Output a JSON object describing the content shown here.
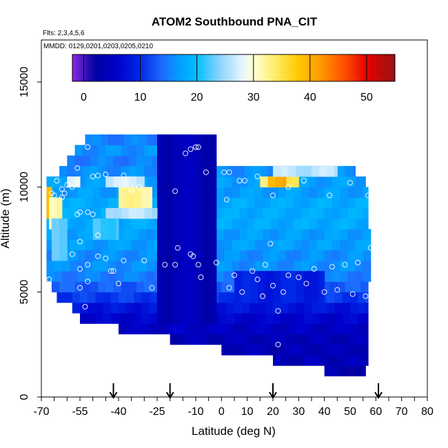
{
  "chart_data": {
    "type": "heatmap",
    "title": "ATOM2 Southbound PNA_CIT",
    "flights_note": "Flts: 2,3,4,5,6",
    "dates_note": "MMDD: 0129,0201,0203,0205,0210",
    "xlabel": "Latitude (deg N)",
    "ylabel": "Altitude (m)",
    "xlim": [
      -70,
      80
    ],
    "ylim": [
      0,
      17000
    ],
    "x_tick_labels": [
      "-70",
      "-55",
      "-40",
      "-25",
      "-10",
      "0",
      "10",
      "20",
      "30",
      "40",
      "50",
      "60",
      "70",
      "80"
    ],
    "x_tick_values": [
      -70,
      -55,
      -40,
      -25,
      -10,
      0,
      10,
      20,
      30,
      40,
      50,
      60,
      70,
      80
    ],
    "y_tick_labels": [
      "0",
      "5000",
      "10000",
      "15000"
    ],
    "y_tick_values": [
      0,
      5000,
      10000,
      15000
    ],
    "colorbar": {
      "range": [
        -2,
        55
      ],
      "tick_labels": [
        "0",
        "10",
        "20",
        "30",
        "40",
        "50"
      ],
      "tick_values": [
        0,
        10,
        20,
        30,
        40,
        50
      ]
    },
    "arrow_latitudes": [
      -42,
      -20,
      20,
      61
    ],
    "bands": [
      {
        "alt_bottom": 1000,
        "alt_top": 1500,
        "x_start": 40,
        "x_end": 56,
        "value": 3
      },
      {
        "alt_bottom": 1500,
        "alt_top": 2000,
        "x_start": 20,
        "x_end": 57,
        "value": 4
      },
      {
        "alt_bottom": 2000,
        "alt_top": 2500,
        "x_start": 0,
        "x_end": 57,
        "value": 4
      },
      {
        "alt_bottom": 2500,
        "alt_top": 3000,
        "x_start": -20,
        "x_end": 57,
        "value": 4
      },
      {
        "alt_bottom": 3000,
        "alt_top": 3500,
        "x_start": -40,
        "x_end": 57,
        "value": 5
      },
      {
        "alt_bottom": 3500,
        "alt_top": 4000,
        "x_start": -55,
        "x_end": 57,
        "value": 6
      },
      {
        "alt_bottom": 4000,
        "alt_top": 4500,
        "x_start": -58,
        "x_end": 57,
        "value": 8
      },
      {
        "alt_bottom": 4500,
        "alt_top": 5000,
        "x_start": -64,
        "x_end": 57,
        "value": 11
      },
      {
        "alt_bottom": 5000,
        "alt_top": 5500,
        "x_start": -66,
        "x_end": 57,
        "value": 13
      },
      {
        "alt_bottom": 5500,
        "alt_top": 6000,
        "x_start": -68,
        "x_end": 58,
        "value": 15
      },
      {
        "alt_bottom": 6000,
        "alt_top": 6500,
        "x_start": -68,
        "x_end": 58,
        "value": 16
      },
      {
        "alt_bottom": 6500,
        "alt_top": 7000,
        "x_start": -68,
        "x_end": 58,
        "value": 16
      },
      {
        "alt_bottom": 7000,
        "alt_top": 7500,
        "x_start": -68,
        "x_end": 58,
        "value": 17
      },
      {
        "alt_bottom": 7500,
        "alt_top": 8000,
        "x_start": -68,
        "x_end": 58,
        "value": 17
      },
      {
        "alt_bottom": 8000,
        "alt_top": 8500,
        "x_start": -68,
        "x_end": 57,
        "value": 18
      },
      {
        "alt_bottom": 8500,
        "alt_top": 9000,
        "x_start": -68,
        "x_end": 57,
        "value": 18
      },
      {
        "alt_bottom": 9000,
        "alt_top": 9500,
        "x_start": -68,
        "x_end": 57,
        "value": 18
      },
      {
        "alt_bottom": 9500,
        "alt_top": 10000,
        "x_start": -68,
        "x_end": 57,
        "value": 17
      },
      {
        "alt_bottom": 10000,
        "alt_top": 10500,
        "x_start": -68,
        "x_end": 56,
        "value": 17
      },
      {
        "alt_bottom": 10500,
        "alt_top": 11000,
        "x_start": -63,
        "x_end": 52,
        "value": 16
      },
      {
        "alt_bottom": 11000,
        "alt_top": 11500,
        "x_start": -60,
        "x_end": -2,
        "value": 15
      },
      {
        "alt_bottom": 11500,
        "alt_top": 12000,
        "x_start": -57,
        "x_end": -12,
        "value": 16
      },
      {
        "alt_bottom": 12000,
        "alt_top": 12500,
        "x_start": -53,
        "x_end": -12,
        "value": 15
      }
    ],
    "patches": [
      {
        "lat_start": -25,
        "lat_end": -2,
        "alt_bottom": 3500,
        "alt_top": 12500,
        "value": 4
      },
      {
        "lat_start": -68,
        "lat_end": -66,
        "alt_bottom": 8500,
        "alt_top": 10000,
        "value": 40
      },
      {
        "lat_start": -67,
        "lat_end": -62,
        "alt_bottom": 8000,
        "alt_top": 9500,
        "value": 32
      },
      {
        "lat_start": -40,
        "lat_end": -27,
        "alt_bottom": 9000,
        "alt_top": 10000,
        "value": 32
      },
      {
        "lat_start": -45,
        "lat_end": -25,
        "alt_bottom": 8500,
        "alt_top": 9000,
        "value": 26
      },
      {
        "lat_start": -45,
        "lat_end": -30,
        "alt_bottom": 10000,
        "alt_top": 10500,
        "value": 27
      },
      {
        "lat_start": 15,
        "lat_end": 30,
        "alt_bottom": 10000,
        "alt_top": 10500,
        "value": 34
      },
      {
        "lat_start": 18,
        "lat_end": 25,
        "alt_bottom": 10000,
        "alt_top": 10500,
        "value": 40
      },
      {
        "lat_start": 20,
        "lat_end": 45,
        "alt_bottom": 10500,
        "alt_top": 11000,
        "value": 26
      },
      {
        "lat_start": -60,
        "lat_end": -55,
        "alt_bottom": 10000,
        "alt_top": 10500,
        "value": 28
      },
      {
        "lat_start": -50,
        "lat_end": -40,
        "alt_bottom": 7500,
        "alt_top": 8500,
        "value": 22
      },
      {
        "lat_start": -66,
        "lat_end": -60,
        "alt_bottom": 6500,
        "alt_top": 8500,
        "value": 22
      },
      {
        "lat_start": 5,
        "lat_end": 40,
        "alt_bottom": 4500,
        "alt_top": 6000,
        "value": 9
      }
    ],
    "points": [
      [
        -54,
        12200
      ],
      [
        -58,
        11800
      ],
      [
        -52,
        11900
      ],
      [
        -56,
        10900
      ],
      [
        -50,
        10500
      ],
      [
        -48,
        10550
      ],
      [
        -45,
        10600
      ],
      [
        -38,
        10550
      ],
      [
        -64,
        10300
      ],
      [
        -62,
        9900
      ],
      [
        -60,
        10100
      ],
      [
        -58,
        10000
      ],
      [
        -61,
        9700
      ],
      [
        -66,
        9700
      ],
      [
        -65,
        9600
      ],
      [
        -62,
        9500
      ],
      [
        -50,
        8700
      ],
      [
        -52,
        8800
      ],
      [
        -55,
        8800
      ],
      [
        -56,
        8700
      ],
      [
        -48,
        7700
      ],
      [
        -35,
        9900
      ],
      [
        -32,
        10000
      ],
      [
        -35,
        9800
      ],
      [
        -18,
        9800
      ],
      [
        -14,
        11600
      ],
      [
        -12,
        11800
      ],
      [
        -10,
        11900
      ],
      [
        -9,
        11900
      ],
      [
        -6,
        10700
      ],
      [
        1,
        10700
      ],
      [
        3,
        10700
      ],
      [
        2,
        9400
      ],
      [
        7,
        10300
      ],
      [
        9,
        10300
      ],
      [
        14,
        10500
      ],
      [
        20,
        9600
      ],
      [
        26,
        10000
      ],
      [
        32,
        10300
      ],
      [
        42,
        9600
      ],
      [
        50,
        10200
      ],
      [
        57,
        9600
      ],
      [
        -55,
        7400
      ],
      [
        -17,
        7100
      ],
      [
        -12,
        6800
      ],
      [
        -11,
        6700
      ],
      [
        -9,
        6300
      ],
      [
        -18,
        6300
      ],
      [
        -22,
        6300
      ],
      [
        -30,
        6500
      ],
      [
        -38,
        6500
      ],
      [
        -45,
        6600
      ],
      [
        -52,
        6300
      ],
      [
        -55,
        6100
      ],
      [
        -58,
        6800
      ],
      [
        -67,
        5600
      ],
      [
        -67,
        5100
      ],
      [
        -55,
        5200
      ],
      [
        -52,
        5500
      ],
      [
        -43,
        6000
      ],
      [
        -40,
        5400
      ],
      [
        -27,
        5200
      ],
      [
        -8,
        5700
      ],
      [
        -2,
        6400
      ],
      [
        3,
        5200
      ],
      [
        5,
        5800
      ],
      [
        8,
        5000
      ],
      [
        12,
        6000
      ],
      [
        14,
        5600
      ],
      [
        17,
        6300
      ],
      [
        19,
        7300
      ],
      [
        16,
        4800
      ],
      [
        20,
        5300
      ],
      [
        22,
        4100
      ],
      [
        24,
        5000
      ],
      [
        26,
        5800
      ],
      [
        30,
        5700
      ],
      [
        33,
        5400
      ],
      [
        36,
        6100
      ],
      [
        40,
        5000
      ],
      [
        43,
        6200
      ],
      [
        45,
        5100
      ],
      [
        48,
        6300
      ],
      [
        51,
        4900
      ],
      [
        53,
        6400
      ],
      [
        56,
        4800
      ],
      [
        58,
        7100
      ],
      [
        -56,
        3800
      ],
      [
        -53,
        4300
      ],
      [
        -48,
        6700
      ],
      [
        22,
        2500
      ],
      [
        -42,
        6000
      ]
    ]
  }
}
